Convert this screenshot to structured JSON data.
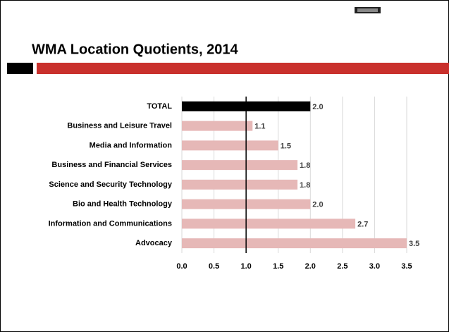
{
  "chart_data": {
    "type": "bar",
    "orientation": "horizontal",
    "title": "WMA Location Quotients, 2014",
    "categories": [
      "TOTAL",
      "Business and Leisure Travel",
      "Media and Information",
      "Business and Financial Services",
      "Science and Security Technology",
      "Bio and Health Technology",
      "Information and Communications",
      "Advocacy"
    ],
    "values": [
      2.0,
      1.1,
      1.5,
      1.8,
      1.8,
      2.0,
      2.7,
      3.5
    ],
    "value_labels": [
      "2.0",
      "1.1",
      "1.5",
      "1.8",
      "1.8",
      "2.0",
      "2.7",
      "3.5"
    ],
    "colors": [
      "#000000",
      "#e6b8b7",
      "#e6b8b7",
      "#e6b8b7",
      "#e6b8b7",
      "#e6b8b7",
      "#e6b8b7",
      "#e6b8b7"
    ],
    "xlim": [
      0,
      3.5
    ],
    "xticks": [
      {
        "value": 0,
        "label": "0.0"
      },
      {
        "value": 0.5,
        "label": "0.5"
      },
      {
        "value": 1,
        "label": "1.0"
      },
      {
        "value": 1.5,
        "label": "1.5"
      },
      {
        "value": 2,
        "label": "2.0"
      },
      {
        "value": 2.5,
        "label": "2.5"
      },
      {
        "value": 3,
        "label": "3.0"
      },
      {
        "value": 3.5,
        "label": "3.5"
      }
    ],
    "axis_crosses": 1,
    "grid": true
  }
}
